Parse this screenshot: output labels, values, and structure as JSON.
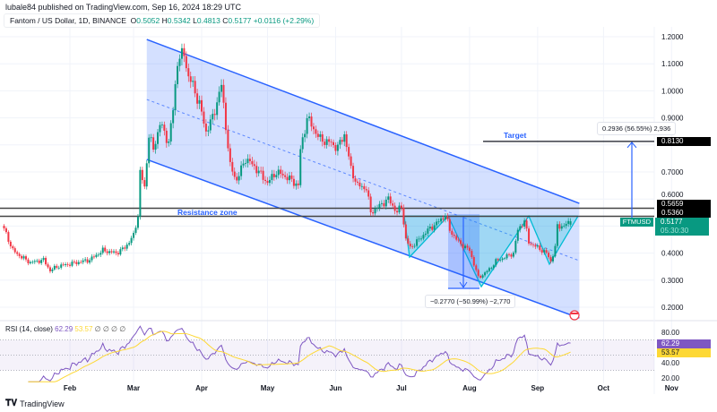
{
  "header": {
    "published": "lubale84 published on TradingView.com, Sep 16, 2024 18:29 UTC"
  },
  "legend": {
    "symbol": "Fantom / US Dollar, 1D, BINANCE",
    "o_label": "O",
    "o": "0.5052",
    "h_label": "H",
    "h": "0.5342",
    "l_label": "L",
    "l": "0.4813",
    "c_label": "C",
    "c": "0.5177",
    "change": "+0.0116 (+2.29%)"
  },
  "annotations": {
    "resistance": "Resistance zone",
    "target": "Target",
    "measure_up": "0.2936 (56.55%) 2,936",
    "measure_down": "−0.2770 (−50.99%) −2,770"
  },
  "price_labels": {
    "target": "0.8130",
    "res_top": "0.5659",
    "res_bottom": "0.5360",
    "symbol": "FTMUSD",
    "last": "0.5177",
    "countdown": "05:30:30",
    "hidden_tick": "0.6000"
  },
  "rsi": {
    "title": "RSI (14, close)",
    "value": "62.29",
    "ma": "53.57",
    "extras": "∅ ∅ ∅ ∅",
    "ticks": [
      "80.00",
      "40.00",
      "20.00"
    ],
    "value_label": "62.29",
    "ma_label": "53.57"
  },
  "brand": {
    "name": "TradingView"
  },
  "colors": {
    "up": "#089981",
    "down": "#f23645",
    "channel": "#2962ff",
    "pattern": "#00bcd4",
    "rsi": "#7e57c2",
    "rsi_ma": "#fdd835"
  },
  "chart_data": {
    "type": "candlestick",
    "title": "Fantom / US Dollar, 1D, BINANCE",
    "x_ticks": [
      "Feb",
      "Mar",
      "Apr",
      "May",
      "Jun",
      "Jul",
      "Aug",
      "Sep",
      "Oct",
      "Nov"
    ],
    "y_ticks": [
      "1.2000",
      "1.1000",
      "1.0000",
      "0.9000",
      "0.7000",
      "0.4000",
      "0.3000",
      "0.2000"
    ],
    "ylim": [
      0.2,
      1.2
    ],
    "grid": true,
    "closes_approx": [
      [
        "2024-01-02",
        0.49
      ],
      [
        "2024-01-06",
        0.41
      ],
      [
        "2024-01-10",
        0.385
      ],
      [
        "2024-01-14",
        0.365
      ],
      [
        "2024-01-20",
        0.375
      ],
      [
        "2024-01-23",
        0.335
      ],
      [
        "2024-01-26",
        0.35
      ],
      [
        "2024-02-01",
        0.36
      ],
      [
        "2024-02-10",
        0.375
      ],
      [
        "2024-02-16",
        0.41
      ],
      [
        "2024-02-22",
        0.4
      ],
      [
        "2024-02-26",
        0.42
      ],
      [
        "2024-03-01",
        0.465
      ],
      [
        "2024-03-03",
        0.54
      ],
      [
        "2024-03-04",
        0.7
      ],
      [
        "2024-03-06",
        0.64
      ],
      [
        "2024-03-08",
        0.84
      ],
      [
        "2024-03-10",
        0.78
      ],
      [
        "2024-03-13",
        0.88
      ],
      [
        "2024-03-17",
        0.81
      ],
      [
        "2024-03-19",
        0.93
      ],
      [
        "2024-03-21",
        1.11
      ],
      [
        "2024-03-24",
        1.14
      ],
      [
        "2024-03-26",
        1.05
      ],
      [
        "2024-03-28",
        1.02
      ],
      [
        "2024-03-31",
        0.95
      ],
      [
        "2024-04-03",
        0.85
      ],
      [
        "2024-04-06",
        0.9
      ],
      [
        "2024-04-10",
        1.02
      ],
      [
        "2024-04-12",
        0.87
      ],
      [
        "2024-04-14",
        0.72
      ],
      [
        "2024-04-17",
        0.67
      ],
      [
        "2024-04-21",
        0.75
      ],
      [
        "2024-04-25",
        0.72
      ],
      [
        "2024-05-01",
        0.66
      ],
      [
        "2024-05-05",
        0.7
      ],
      [
        "2024-05-10",
        0.68
      ],
      [
        "2024-05-15",
        0.65
      ],
      [
        "2024-05-16",
        0.78
      ],
      [
        "2024-05-19",
        0.9
      ],
      [
        "2024-05-22",
        0.86
      ],
      [
        "2024-05-25",
        0.82
      ],
      [
        "2024-05-29",
        0.81
      ],
      [
        "2024-06-02",
        0.79
      ],
      [
        "2024-06-05",
        0.84
      ],
      [
        "2024-06-08",
        0.71
      ],
      [
        "2024-06-11",
        0.65
      ],
      [
        "2024-06-15",
        0.64
      ],
      [
        "2024-06-17",
        0.55
      ],
      [
        "2024-06-21",
        0.575
      ],
      [
        "2024-06-25",
        0.6
      ],
      [
        "2024-06-29",
        0.55
      ],
      [
        "2024-07-01",
        0.575
      ],
      [
        "2024-07-03",
        0.45
      ],
      [
        "2024-07-05",
        0.42
      ],
      [
        "2024-07-09",
        0.45
      ],
      [
        "2024-07-13",
        0.485
      ],
      [
        "2024-07-17",
        0.51
      ],
      [
        "2024-07-21",
        0.54
      ],
      [
        "2024-07-23",
        0.485
      ],
      [
        "2024-07-27",
        0.44
      ],
      [
        "2024-08-01",
        0.41
      ],
      [
        "2024-08-05",
        0.31
      ],
      [
        "2024-08-07",
        0.32
      ],
      [
        "2024-08-10",
        0.34
      ],
      [
        "2024-08-13",
        0.37
      ],
      [
        "2024-08-17",
        0.385
      ],
      [
        "2024-08-21",
        0.4
      ],
      [
        "2024-08-23",
        0.485
      ],
      [
        "2024-08-26",
        0.52
      ],
      [
        "2024-08-28",
        0.44
      ],
      [
        "2024-09-01",
        0.42
      ],
      [
        "2024-09-05",
        0.4
      ],
      [
        "2024-09-07",
        0.37
      ],
      [
        "2024-09-09",
        0.42
      ],
      [
        "2024-09-10",
        0.5
      ],
      [
        "2024-09-13",
        0.5
      ],
      [
        "2024-09-16",
        0.5177
      ]
    ],
    "horizontal_levels": [
      0.5659,
      0.536,
      0.813
    ],
    "channel": {
      "start": "2024-03-07",
      "end": "2024-09-20",
      "upper": [
        1.19,
        0.584
      ],
      "lower": [
        0.746,
        0.16
      ]
    },
    "rsi_levels": {
      "upper": 70,
      "lower": 30,
      "range": [
        15,
        90
      ]
    }
  }
}
